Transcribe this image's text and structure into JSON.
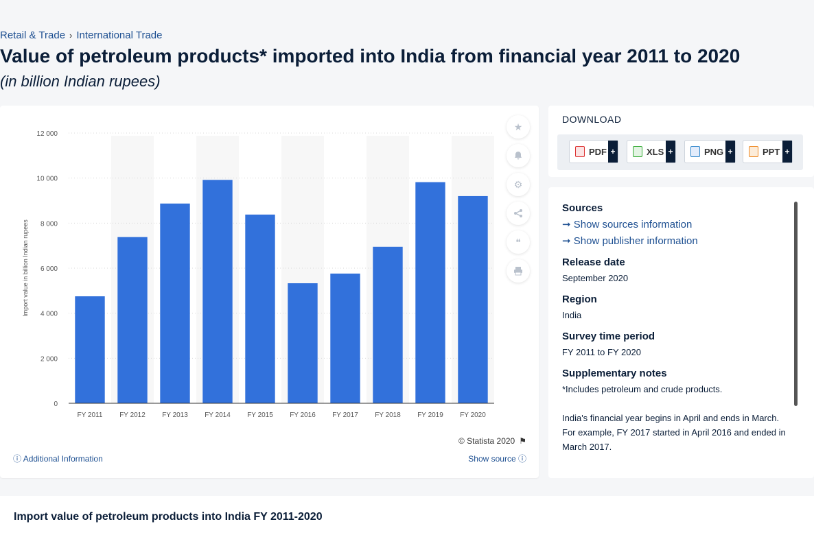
{
  "breadcrumb": {
    "item1": "Retail & Trade",
    "sep": "›",
    "item2": "International Trade"
  },
  "page": {
    "title": "Value of petroleum products* imported into India from financial year 2011 to 2020",
    "subtitle": "(in billion Indian rupees)",
    "bottom_title": "Import value of petroleum products into India FY 2011-2020"
  },
  "chart_data": {
    "type": "bar",
    "categories": [
      "FY 2011",
      "FY 2012",
      "FY 2013",
      "FY 2014",
      "FY 2015",
      "FY 2016",
      "FY 2017",
      "FY 2018",
      "FY 2019",
      "FY 2020"
    ],
    "values": [
      4750,
      7380,
      8870,
      9920,
      8380,
      5330,
      5760,
      6950,
      9820,
      9200
    ],
    "ylabel": "Import value in billion Indian rupees",
    "ylim": [
      0,
      12000
    ],
    "yticks": [
      "0",
      "2 000",
      "4 000",
      "6 000",
      "8 000",
      "10 000",
      "12 000"
    ],
    "bar_color": "#3271db",
    "grid": true
  },
  "chart_footer": {
    "copyright": "© Statista 2020",
    "additional": "Additional Information",
    "show_source": "Show source"
  },
  "download": {
    "title": "DOWNLOAD",
    "pdf": "PDF",
    "xls": "XLS",
    "png": "PNG",
    "ppt": "PPT",
    "plus": "+"
  },
  "info": {
    "sources_h": "Sources",
    "sources_link": "Show sources information",
    "publisher_link": "Show publisher information",
    "release_h": "Release date",
    "release_v": "September 2020",
    "region_h": "Region",
    "region_v": "India",
    "survey_h": "Survey time period",
    "survey_v": "FY 2011 to FY 2020",
    "notes_h": "Supplementary notes",
    "notes_v1": "*Includes petroleum and crude products.",
    "notes_v2": "India's financial year begins in April and ends in March. For example, FY 2017 started in April 2016 and ended in March 2017."
  },
  "tools": [
    "star-icon",
    "bell-icon",
    "gear-icon",
    "share-icon",
    "quote-icon",
    "print-icon"
  ]
}
